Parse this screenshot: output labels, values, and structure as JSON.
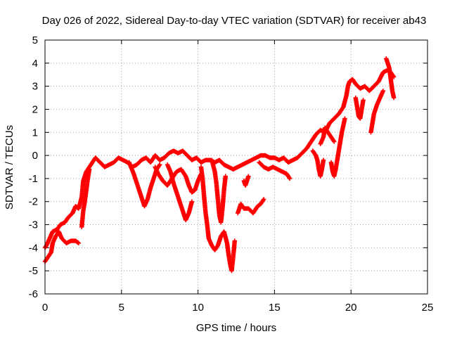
{
  "chart_data": {
    "type": "scatter",
    "title": "Day 026 of 2022, Sidereal Day-to-day VTEC variation (SDTVAR) for receiver ab43",
    "xlabel": "GPS time / hours",
    "ylabel": "SDTVAR / TECUs",
    "xlim": [
      0,
      25
    ],
    "ylim": [
      -6,
      5
    ],
    "xticks": [
      0,
      5,
      10,
      15,
      20,
      25
    ],
    "yticks": [
      -6,
      -5,
      -4,
      -3,
      -2,
      -1,
      0,
      1,
      2,
      3,
      4,
      5
    ],
    "grid": true,
    "marker": "+",
    "series": [
      {
        "name": "SDTVAR",
        "color": "#ff0000",
        "tracks": [
          [
            [
              0.0,
              -4.0
            ],
            [
              0.1,
              -3.9
            ],
            [
              0.3,
              -3.6
            ],
            [
              0.5,
              -3.3
            ],
            [
              0.8,
              -3.2
            ],
            [
              1.0,
              -3.0
            ],
            [
              1.3,
              -2.9
            ],
            [
              1.5,
              -2.7
            ],
            [
              1.8,
              -2.5
            ],
            [
              2.0,
              -2.2
            ],
            [
              2.2,
              -2.3
            ],
            [
              2.4,
              -1.8
            ],
            [
              2.5,
              -1.1
            ],
            [
              2.7,
              -0.7
            ],
            [
              2.9,
              -0.5
            ],
            [
              3.1,
              -0.3
            ],
            [
              3.3,
              -0.1
            ],
            [
              3.6,
              -0.3
            ],
            [
              3.9,
              -0.5
            ],
            [
              4.2,
              -0.4
            ],
            [
              4.5,
              -0.3
            ],
            [
              4.8,
              -0.1
            ],
            [
              5.1,
              -0.2
            ],
            [
              5.4,
              -0.3
            ],
            [
              5.7,
              -0.5
            ],
            [
              6.0,
              -0.4
            ],
            [
              6.3,
              -0.2
            ],
            [
              6.6,
              -0.1
            ],
            [
              6.9,
              -0.3
            ],
            [
              7.2,
              0.0
            ],
            [
              7.5,
              -0.2
            ],
            [
              7.8,
              -0.1
            ],
            [
              8.1,
              0.1
            ],
            [
              8.4,
              0.2
            ],
            [
              8.7,
              0.1
            ],
            [
              9.0,
              0.2
            ],
            [
              9.3,
              0.0
            ],
            [
              9.6,
              -0.2
            ],
            [
              9.9,
              -0.1
            ],
            [
              10.2,
              -0.3
            ],
            [
              10.5,
              -0.2
            ],
            [
              10.8,
              -0.2
            ],
            [
              11.1,
              -0.3
            ],
            [
              11.4,
              -0.2
            ],
            [
              11.7,
              -0.4
            ],
            [
              12.0,
              -0.5
            ],
            [
              12.3,
              -0.6
            ],
            [
              12.6,
              -0.5
            ],
            [
              12.9,
              -0.4
            ],
            [
              13.2,
              -0.3
            ],
            [
              13.5,
              -0.2
            ],
            [
              13.8,
              -0.1
            ],
            [
              14.1,
              0.0
            ],
            [
              14.4,
              0.0
            ],
            [
              14.7,
              -0.1
            ],
            [
              15.0,
              -0.1
            ],
            [
              15.3,
              -0.2
            ],
            [
              15.6,
              -0.1
            ],
            [
              15.9,
              -0.3
            ],
            [
              16.2,
              -0.2
            ],
            [
              16.5,
              -0.1
            ],
            [
              16.8,
              0.1
            ],
            [
              17.1,
              0.3
            ],
            [
              17.4,
              0.6
            ],
            [
              17.7,
              0.9
            ],
            [
              18.0,
              1.1
            ],
            [
              18.3,
              1.0
            ],
            [
              18.6,
              1.4
            ],
            [
              18.9,
              1.6
            ],
            [
              19.2,
              1.8
            ],
            [
              19.5,
              2.1
            ],
            [
              19.7,
              2.6
            ],
            [
              19.8,
              3.0
            ],
            [
              19.9,
              3.2
            ],
            [
              20.1,
              3.3
            ],
            [
              20.3,
              3.1
            ],
            [
              20.6,
              2.9
            ],
            [
              20.9,
              3.0
            ],
            [
              21.2,
              2.8
            ],
            [
              21.5,
              3.0
            ],
            [
              21.8,
              3.2
            ],
            [
              22.1,
              3.6
            ],
            [
              22.4,
              3.7
            ],
            [
              22.6,
              3.6
            ],
            [
              22.8,
              3.4
            ]
          ],
          [
            [
              0.0,
              -4.6
            ],
            [
              0.2,
              -4.4
            ],
            [
              0.4,
              -4.2
            ],
            [
              0.5,
              -3.8
            ],
            [
              0.7,
              -3.5
            ],
            [
              0.9,
              -3.3
            ],
            [
              1.1,
              -3.6
            ],
            [
              1.4,
              -3.8
            ],
            [
              1.7,
              -3.7
            ],
            [
              2.0,
              -3.7
            ],
            [
              2.2,
              -3.8
            ]
          ],
          [
            [
              2.4,
              -3.1
            ],
            [
              2.5,
              -2.4
            ],
            [
              2.6,
              -2.0
            ],
            [
              2.7,
              -1.5
            ],
            [
              2.8,
              -1.0
            ],
            [
              2.9,
              -0.6
            ]
          ],
          [
            [
              5.5,
              -0.3
            ],
            [
              5.8,
              -0.8
            ],
            [
              6.1,
              -1.4
            ],
            [
              6.3,
              -1.8
            ],
            [
              6.5,
              -2.2
            ],
            [
              6.7,
              -1.9
            ],
            [
              6.9,
              -1.4
            ],
            [
              7.1,
              -1.0
            ],
            [
              7.3,
              -0.6
            ],
            [
              7.5,
              -0.4
            ]
          ],
          [
            [
              7.2,
              -0.5
            ],
            [
              7.4,
              -0.8
            ],
            [
              7.7,
              -1.1
            ],
            [
              8.0,
              -1.3
            ],
            [
              8.3,
              -1.0
            ],
            [
              8.6,
              -0.7
            ],
            [
              8.9,
              -0.6
            ],
            [
              9.2,
              -0.9
            ],
            [
              9.4,
              -1.3
            ],
            [
              9.6,
              -1.6
            ],
            [
              9.8,
              -1.5
            ],
            [
              10.0,
              -1.1
            ],
            [
              10.2,
              -0.8
            ]
          ],
          [
            [
              8.0,
              -0.4
            ],
            [
              8.2,
              -0.7
            ],
            [
              8.4,
              -1.2
            ],
            [
              8.6,
              -1.6
            ],
            [
              8.8,
              -2.0
            ],
            [
              9.0,
              -2.4
            ],
            [
              9.2,
              -2.8
            ],
            [
              9.4,
              -2.5
            ],
            [
              9.6,
              -2.0
            ]
          ],
          [
            [
              10.2,
              -0.5
            ],
            [
              10.3,
              -1.0
            ],
            [
              10.4,
              -1.8
            ],
            [
              10.5,
              -2.5
            ],
            [
              10.6,
              -3.0
            ],
            [
              10.7,
              -3.6
            ],
            [
              10.9,
              -3.9
            ],
            [
              11.1,
              -4.1
            ],
            [
              11.3,
              -3.9
            ],
            [
              11.5,
              -3.5
            ],
            [
              11.7,
              -3.3
            ],
            [
              11.9,
              -3.8
            ],
            [
              12.0,
              -4.3
            ],
            [
              12.1,
              -4.7
            ],
            [
              12.2,
              -5.0
            ],
            [
              12.3,
              -4.4
            ],
            [
              12.4,
              -3.7
            ]
          ],
          [
            [
              10.9,
              -0.2
            ],
            [
              11.1,
              -0.7
            ],
            [
              11.2,
              -1.2
            ],
            [
              11.3,
              -1.9
            ],
            [
              11.4,
              -2.6
            ],
            [
              11.5,
              -2.9
            ],
            [
              11.6,
              -2.3
            ],
            [
              11.7,
              -1.5
            ],
            [
              11.8,
              -0.9
            ]
          ],
          [
            [
              12.6,
              -2.5
            ],
            [
              12.8,
              -2.1
            ],
            [
              13.0,
              -2.3
            ],
            [
              13.3,
              -2.3
            ],
            [
              13.6,
              -2.5
            ],
            [
              13.9,
              -2.2
            ],
            [
              14.1,
              -2.1
            ],
            [
              14.3,
              -1.9
            ]
          ],
          [
            [
              13.0,
              -1.1
            ],
            [
              13.1,
              -1.3
            ],
            [
              13.2,
              -1.1
            ],
            [
              13.3,
              -0.9
            ]
          ],
          [
            [
              14.0,
              -0.3
            ],
            [
              14.3,
              -0.5
            ],
            [
              14.6,
              -0.6
            ],
            [
              14.9,
              -0.5
            ],
            [
              15.2,
              -0.6
            ],
            [
              15.5,
              -0.7
            ],
            [
              15.8,
              -0.8
            ],
            [
              16.0,
              -1.0
            ]
          ],
          [
            [
              17.5,
              0.2
            ],
            [
              17.7,
              0.0
            ],
            [
              17.8,
              -0.2
            ],
            [
              17.9,
              -0.6
            ],
            [
              18.0,
              -0.9
            ],
            [
              18.1,
              -0.6
            ],
            [
              18.2,
              -0.2
            ]
          ],
          [
            [
              18.0,
              0.5
            ],
            [
              18.2,
              0.8
            ],
            [
              18.3,
              1.2
            ],
            [
              18.5,
              1.0
            ],
            [
              18.7,
              0.8
            ],
            [
              18.9,
              0.6
            ]
          ],
          [
            [
              18.7,
              -0.3
            ],
            [
              18.8,
              -0.7
            ],
            [
              18.9,
              -0.9
            ],
            [
              19.0,
              -0.6
            ],
            [
              19.1,
              -0.2
            ],
            [
              19.2,
              0.2
            ],
            [
              19.3,
              0.6
            ],
            [
              19.4,
              1.0
            ],
            [
              19.5,
              1.3
            ],
            [
              19.6,
              1.6
            ]
          ],
          [
            [
              20.3,
              2.5
            ],
            [
              20.4,
              2.1
            ],
            [
              20.5,
              1.7
            ],
            [
              20.6,
              1.6
            ],
            [
              20.7,
              2.0
            ],
            [
              20.8,
              2.4
            ]
          ],
          [
            [
              21.3,
              1.0
            ],
            [
              21.4,
              1.4
            ],
            [
              21.5,
              1.8
            ],
            [
              21.7,
              2.2
            ],
            [
              21.9,
              2.5
            ],
            [
              22.1,
              2.8
            ]
          ],
          [
            [
              22.3,
              4.2
            ],
            [
              22.4,
              4.0
            ],
            [
              22.5,
              3.8
            ],
            [
              22.6,
              3.3
            ],
            [
              22.7,
              2.8
            ],
            [
              22.8,
              2.5
            ]
          ]
        ]
      }
    ]
  }
}
